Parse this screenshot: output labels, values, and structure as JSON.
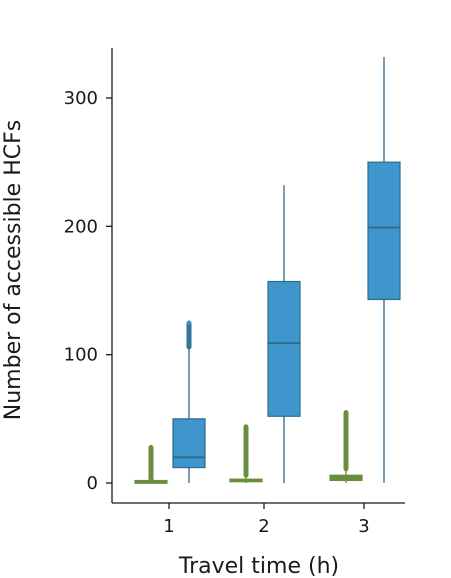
{
  "chart_data": {
    "type": "box",
    "xlabel": "Travel time (h)",
    "ylabel": "Number of accessible HCFs",
    "categories": [
      "1",
      "2",
      "3"
    ],
    "y_ticks": [
      0,
      100,
      200,
      300
    ],
    "ylim": [
      -15,
      340
    ],
    "grid": false,
    "legend": "none",
    "series": [
      {
        "color": "#6b8e3e",
        "boxes": [
          {
            "min": 0,
            "q1": 0,
            "median": 0,
            "q3": 1,
            "max": 3,
            "outliers_from": 3,
            "outliers_to": 28
          },
          {
            "min": 0,
            "q1": 1,
            "median": 2,
            "q3": 3,
            "max": 6,
            "outliers_from": 6,
            "outliers_to": 44
          },
          {
            "min": 0,
            "q1": 2,
            "median": 4,
            "q3": 6,
            "max": 11,
            "outliers_from": 11,
            "outliers_to": 55
          }
        ]
      },
      {
        "color": "#3e96cc",
        "edge_color": "#2e6b8a",
        "boxes": [
          {
            "min": 0,
            "q1": 12,
            "median": 20,
            "q3": 50,
            "max": 106,
            "outliers_from": 106,
            "outliers_to": 125
          },
          {
            "min": 0,
            "q1": 52,
            "median": 109,
            "q3": 157,
            "max": 232
          },
          {
            "min": 0,
            "q1": 143,
            "median": 199,
            "q3": 250,
            "max": 332
          }
        ]
      }
    ]
  }
}
